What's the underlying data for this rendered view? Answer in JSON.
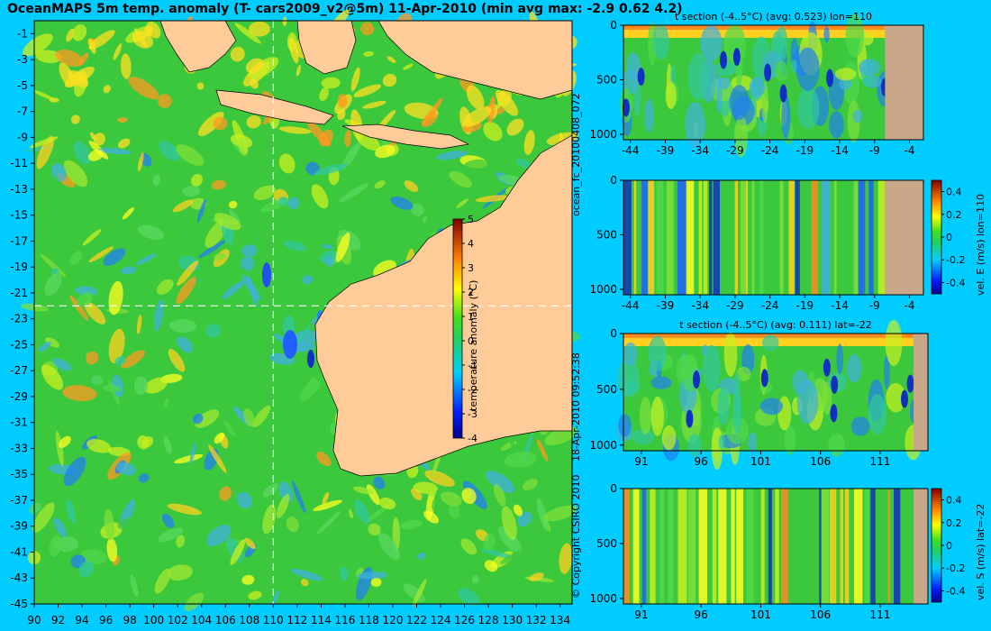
{
  "title": "OceanMAPS 5m temp. anomaly (T- cars2009_v2@5m) 11-Apr-2010 (min avg max: -2.9 0.62 4.2)",
  "side_label_top": "ocean_fc_20100408_072",
  "side_label_bottom": "18-Apr-2010 09:52:38",
  "copyright": "© Copyright CSIRO 2010",
  "colors": {
    "background": "#00ccff",
    "land": "#ffcc99",
    "section_land": "#c8a888",
    "crosshair": "#ffffff"
  },
  "chart_data": [
    {
      "type": "heatmap",
      "name": "map",
      "x_ticks": [
        "90",
        "92",
        "94",
        "96",
        "98",
        "100",
        "102",
        "104",
        "106",
        "108",
        "110",
        "112",
        "114",
        "116",
        "118",
        "120",
        "122",
        "124",
        "126",
        "128",
        "130",
        "132",
        "134"
      ],
      "y_ticks": [
        "-1",
        "-3",
        "-5",
        "-7",
        "-9",
        "-11",
        "-13",
        "-15",
        "-17",
        "-19",
        "-21",
        "-23",
        "-25",
        "-27",
        "-29",
        "-31",
        "-33",
        "-35",
        "-37",
        "-39",
        "-41",
        "-43",
        "-45"
      ],
      "xlim": [
        90,
        135
      ],
      "ylim": [
        -45,
        0
      ],
      "crosshair": {
        "lon": 110,
        "lat": -22
      },
      "colorbar": {
        "ticks": [
          "5",
          "4",
          "3",
          "2",
          "1",
          "0",
          "-1",
          "-2",
          "-3",
          "-4"
        ],
        "label": "temperature anomaly (°C)",
        "range": [
          -4,
          5
        ]
      }
    },
    {
      "type": "heatmap",
      "name": "t-section-lon",
      "title": "t section (-4..5°C) (avg: 0.523) lon=110",
      "x_ticks": [
        "-44",
        "-39",
        "-34",
        "-29",
        "-24",
        "-19",
        "-14",
        "-9",
        "-4"
      ],
      "y_ticks": [
        "0",
        "500",
        "1000"
      ],
      "xlim": [
        -45,
        -2
      ],
      "ylim": [
        0,
        1050
      ],
      "land_from": -7.5
    },
    {
      "type": "heatmap",
      "name": "vel-e-lon",
      "x_ticks": [
        "-44",
        "-39",
        "-34",
        "-29",
        "-24",
        "-19",
        "-14",
        "-9",
        "-4"
      ],
      "y_ticks": [
        "0",
        "500",
        "1000"
      ],
      "xlim": [
        -45,
        -2
      ],
      "ylim": [
        0,
        1050
      ],
      "land_from": -7.5,
      "colorbar": {
        "ticks": [
          "0.4",
          "0.2",
          "0",
          "-0.2",
          "-0.4"
        ],
        "label": "vel. E (m/s) lon=110",
        "range": [
          -0.5,
          0.5
        ]
      }
    },
    {
      "type": "heatmap",
      "name": "t-section-lat",
      "title": "t section (-4..5°C) (avg: 0.111) lat=-22",
      "x_ticks": [
        "91",
        "96",
        "101",
        "106",
        "111"
      ],
      "y_ticks": [
        "0",
        "500",
        "1000"
      ],
      "xlim": [
        89.5,
        115
      ],
      "ylim": [
        0,
        1050
      ],
      "land_from": 113.8
    },
    {
      "type": "heatmap",
      "name": "vel-s-lat",
      "x_ticks": [
        "91",
        "96",
        "101",
        "106",
        "111"
      ],
      "y_ticks": [
        "0",
        "500",
        "1000"
      ],
      "xlim": [
        89.5,
        115
      ],
      "ylim": [
        0,
        1050
      ],
      "land_from": 113.8,
      "colorbar": {
        "ticks": [
          "0.4",
          "0.2",
          "0",
          "-0.2",
          "-0.4"
        ],
        "label": "vel. S (m/s) lat=-22",
        "range": [
          -0.5,
          0.5
        ]
      }
    }
  ]
}
